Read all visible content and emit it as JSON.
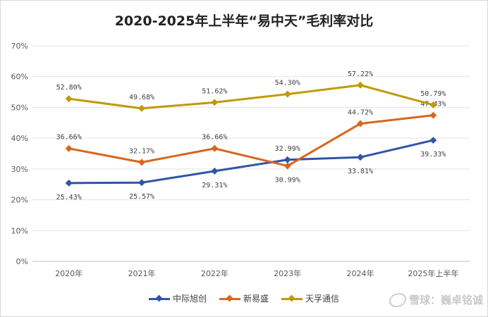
{
  "chart_data": {
    "type": "line",
    "title": "2020-2025年上半年“易中天”毛利率对比",
    "categories": [
      "2020年",
      "2021年",
      "2022年",
      "2023年",
      "2024年",
      "2025年上半年"
    ],
    "y_ticks": [
      "0%",
      "10%",
      "20%",
      "30%",
      "40%",
      "50%",
      "60%",
      "70%"
    ],
    "ylim": [
      0,
      70
    ],
    "grid": true,
    "legend_position": "bottom",
    "series": [
      {
        "name": "中际旭创",
        "color": "#2e55a6",
        "values": [
          25.43,
          25.57,
          29.31,
          32.99,
          33.81,
          39.33
        ],
        "labels": [
          "25.43%",
          "25.57%",
          "29.31%",
          "32.99%",
          "33.81%",
          "39.33%"
        ],
        "label_pos": [
          "below",
          "below",
          "below",
          "above",
          "below",
          "below"
        ]
      },
      {
        "name": "新易盛",
        "color": "#d8661f",
        "values": [
          36.66,
          32.17,
          36.66,
          30.99,
          44.72,
          47.43
        ],
        "labels": [
          "36.66%",
          "32.17%",
          "36.66%",
          "30.99%",
          "44.72%",
          "47.43%"
        ],
        "label_pos": [
          "above",
          "above",
          "above",
          "below",
          "above",
          "above"
        ]
      },
      {
        "name": "天孚通信",
        "color": "#c09a06",
        "values": [
          52.8,
          49.68,
          51.62,
          54.3,
          57.22,
          50.79
        ],
        "labels": [
          "52.80%",
          "49.68%",
          "51.62%",
          "54.30%",
          "57.22%",
          "50.79%"
        ],
        "label_pos": [
          "above",
          "above",
          "above",
          "above",
          "above",
          "above"
        ]
      }
    ]
  },
  "watermark": {
    "text": "雪球：巍卓铭诚"
  }
}
